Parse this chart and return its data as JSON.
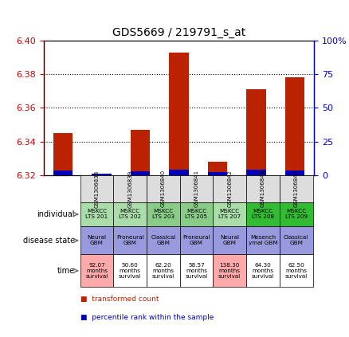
{
  "title": "GDS5669 / 219791_s_at",
  "samples": [
    "GSM1306838",
    "GSM1306839",
    "GSM1306840",
    "GSM1306841",
    "GSM1306842",
    "GSM1306843",
    "GSM1306844"
  ],
  "transformed_count": [
    6.345,
    6.321,
    6.347,
    6.393,
    6.328,
    6.371,
    6.378
  ],
  "percentile_rank": [
    3.5,
    1.5,
    3.0,
    4.5,
    2.5,
    4.0,
    3.8
  ],
  "ylim_left": [
    6.32,
    6.4
  ],
  "ylim_right": [
    0,
    100
  ],
  "yticks_left": [
    6.32,
    6.34,
    6.36,
    6.38,
    6.4
  ],
  "yticks_right": [
    0,
    25,
    50,
    75,
    100
  ],
  "individual": [
    "MSKCC\nLTS 201",
    "MSKCC\nLTS 202",
    "MSKCC\nLTS 203",
    "MSKCC\nLTS 205",
    "MSKCC\nLTS 207",
    "MSKCC\nLTS 208",
    "MSKCC\nLTS 209"
  ],
  "disease_state": [
    "Neural\nGBM",
    "Proneural\nGBM",
    "Classical\nGBM",
    "Proneural\nGBM",
    "Neural\nGBM",
    "Mesench\nymal GBM",
    "Classical\nGBM"
  ],
  "time": [
    "92.07\nmonths\nsurvival",
    "50.60\nmonths\nsurvival",
    "62.20\nmonths\nsurvival",
    "58.57\nmonths\nsurvival",
    "138.30\nmonths\nsurvival",
    "64.30\nmonths\nsurvival",
    "62.50\nmonths\nsurvival"
  ],
  "individual_colors": [
    "#aaddaa",
    "#aaddaa",
    "#88cc88",
    "#88cc88",
    "#aaddaa",
    "#33bb33",
    "#33bb33"
  ],
  "disease_state_colors": [
    "#9999dd",
    "#9999dd",
    "#9999dd",
    "#9999dd",
    "#9999dd",
    "#9999dd",
    "#9999dd"
  ],
  "time_colors": [
    "#ffaaaa",
    "#ffffff",
    "#ffffff",
    "#ffffff",
    "#ffaaaa",
    "#ffffff",
    "#ffffff"
  ],
  "bar_color_red": "#bb2200",
  "bar_color_blue": "#0000bb",
  "axis_color_red": "#cc0000",
  "axis_color_blue": "#0000cc",
  "background_color": "#dddddd",
  "plot_bg": "#ffffff",
  "legend_red": "transformed count",
  "legend_blue": "percentile rank within the sample"
}
